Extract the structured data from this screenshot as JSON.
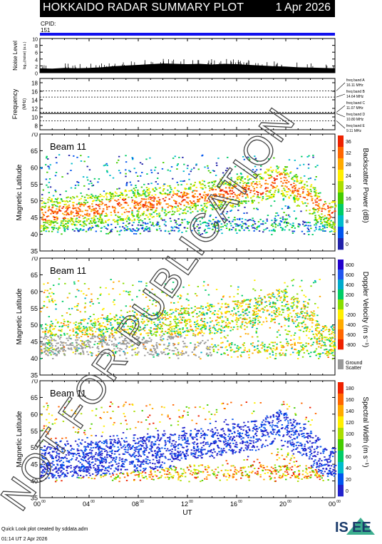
{
  "header": {
    "title": "HOKKAIDO RADAR SUMMARY PLOT",
    "date": "1 Apr 2026"
  },
  "cpid": {
    "label": "CPID:",
    "value": "151"
  },
  "watermark": "NOT FOR PUBLICATION",
  "footer": {
    "credit": "Quick Look plot created by sddata.adm",
    "timestamp": "01:14 UT  2 Apr 2026"
  },
  "logo": {
    "text_is": "IS",
    "text_ee": "EE"
  },
  "colors": {
    "header_bg": "#000000",
    "cpid_bar": "#1111ee",
    "noise_fill": "#000000"
  },
  "chart_data": [
    {
      "type": "area",
      "name": "noise",
      "ylabel": "Noise Level",
      "ylabel_sub": "log₁₀(noise)  (a.u.)",
      "ylim": [
        0,
        10
      ],
      "yticks": [
        0,
        2,
        4,
        6,
        8,
        10
      ],
      "x_hours": [
        0,
        1,
        2,
        3,
        4,
        5,
        6,
        7,
        8,
        9,
        10,
        11,
        12,
        13,
        14,
        15,
        16,
        17,
        18,
        19,
        20,
        21,
        22,
        23,
        24
      ],
      "values": [
        1.3,
        1.2,
        1.4,
        1.3,
        1.4,
        1.6,
        1.9,
        2.1,
        2.3,
        2.5,
        2.7,
        2.6,
        2.5,
        2.6,
        2.4,
        2.6,
        2.5,
        2.3,
        2.1,
        1.9,
        1.8,
        1.6,
        1.5,
        1.4,
        1.3
      ]
    },
    {
      "type": "line",
      "name": "frequency",
      "ylabel": "Frequency",
      "ylabel_sub": "(MHz)",
      "ylim": [
        7,
        19
      ],
      "yticks": [
        8,
        10,
        12,
        14,
        16,
        18
      ],
      "bands": [
        {
          "label": "freq band A",
          "value": "16.11 MHz",
          "f": 16.11,
          "style": "dotted"
        },
        {
          "label": "freq band B",
          "value": "14.64 MHz",
          "f": 14.64,
          "style": "dotted"
        },
        {
          "label": "freq band C",
          "value": "11.07 MHz",
          "f": 11.07,
          "style": "dotted"
        },
        {
          "label": "freq band D",
          "value": "10.80 MHz",
          "f": 10.8,
          "style": "solid"
        },
        {
          "label": "freq band E",
          "value": "9.11 MHz",
          "f": 9.11,
          "style": "dotted"
        }
      ]
    },
    {
      "type": "heatmap",
      "name": "power",
      "beam": "Beam 11",
      "ylabel": "Magnetic Latitude",
      "ylim": [
        35,
        70
      ],
      "yticks": [
        35,
        40,
        45,
        50,
        55,
        60,
        65,
        70
      ],
      "colorbar": {
        "label": "Backscatter Power (dB)",
        "ticks": [
          "36",
          "32",
          "28",
          "24",
          "20",
          "16",
          "12",
          "8",
          "4",
          "0"
        ],
        "range": [
          0,
          36
        ],
        "colors": [
          "#ee2200",
          "#ff6600",
          "#ffaa00",
          "#ffee00",
          "#aadd00",
          "#44cc00",
          "#00cc66",
          "#00bbcc",
          "#0055ee",
          "#2222aa"
        ]
      }
    },
    {
      "type": "heatmap",
      "name": "velocity",
      "beam": "Beam 11",
      "ylabel": "Magnetic Latitude",
      "ylim": [
        35,
        70
      ],
      "yticks": [
        35,
        40,
        45,
        50,
        55,
        60,
        65,
        70
      ],
      "colorbar": {
        "label": "Doppler Velocity (m s⁻¹)",
        "ticks": [
          "800",
          "600",
          "400",
          "200",
          "0",
          "-200",
          "-400",
          "-600",
          "-800"
        ],
        "range": [
          -800,
          800
        ],
        "colors": [
          "#2200cc",
          "#2255ee",
          "#00aacc",
          "#00cc66",
          "#88dd00",
          "#ffee00",
          "#ffaa00",
          "#ff6600",
          "#ee2200"
        ],
        "ground_label": "Ground",
        "ground_label2": "Scatter",
        "ground_color": "#999999"
      }
    },
    {
      "type": "heatmap",
      "name": "width",
      "beam": "Beam 11",
      "ylabel": "Magnetic Latitude",
      "ylim": [
        35,
        70
      ],
      "yticks": [
        35,
        40,
        45,
        50,
        55,
        60,
        65,
        70
      ],
      "xlabel": "UT",
      "xticks": [
        "00",
        "04",
        "08",
        "12",
        "16",
        "20",
        "00"
      ],
      "xtick_sup": "00",
      "colorbar": {
        "label": "Spectral Width (m s⁻¹)",
        "ticks": [
          "180",
          "160",
          "140",
          "120",
          "100",
          "80",
          "60",
          "40",
          "20",
          "0"
        ],
        "range": [
          0,
          180
        ],
        "colors": [
          "#ee2200",
          "#ff6600",
          "#ffaa00",
          "#ffee00",
          "#aadd00",
          "#44cc00",
          "#00cc66",
          "#00bbcc",
          "#0055ee",
          "#2222cc"
        ]
      }
    }
  ]
}
